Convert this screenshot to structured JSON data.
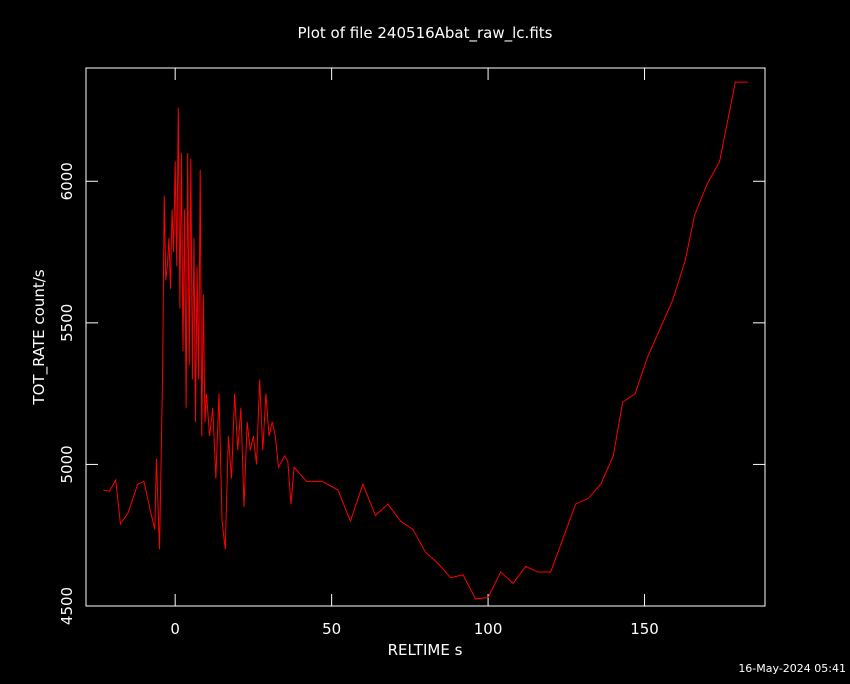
{
  "chart_data": {
    "type": "line",
    "title": "Plot of file 240516Abat_raw_lc.fits",
    "x_label": "RELTIME  s",
    "y_label": "TOT_RATE  count/s",
    "timestamp": "16-May-2024 05:41",
    "xlim": [
      -28.5,
      188.5
    ],
    "ylim": [
      4500,
      6400
    ],
    "xticks": [
      0,
      50,
      100,
      150
    ],
    "yticks": [
      4500,
      5000,
      5500,
      6000
    ],
    "series": [
      {
        "color": "#ff0000",
        "x": [
          -23,
          -21,
          -19,
          -17.5,
          -15,
          -12,
          -10,
          -8,
          -6.5,
          -6,
          -5,
          -4,
          -3.5,
          -3,
          -2.5,
          -2,
          -1.5,
          -1,
          -0.5,
          0,
          0.5,
          1,
          1.5,
          2,
          2.5,
          3,
          3.5,
          4,
          4.5,
          5,
          5.5,
          6,
          6.5,
          7,
          7.5,
          8,
          8.5,
          9,
          9.5,
          10,
          11,
          12,
          13,
          14,
          15,
          16,
          17,
          18,
          19,
          20,
          21,
          22,
          23,
          24,
          25,
          26,
          27,
          28,
          29,
          30,
          31,
          32,
          33,
          35,
          36,
          37,
          38,
          42,
          47,
          52,
          56,
          60,
          64,
          68,
          72,
          76,
          80,
          84,
          88,
          92,
          96,
          100,
          104,
          108,
          112,
          116,
          120,
          124,
          128,
          132,
          136,
          140,
          143,
          147,
          151,
          155,
          159,
          163,
          166,
          170,
          174,
          179,
          183
        ],
        "values": [
          4910,
          4905,
          4945,
          4790,
          4830,
          4930,
          4940,
          4840,
          4770,
          5020,
          4700,
          5330,
          5950,
          5650,
          5700,
          5800,
          5620,
          5900,
          5750,
          6070,
          5700,
          6260,
          5550,
          6100,
          5400,
          5900,
          5200,
          6100,
          5350,
          6080,
          5300,
          5800,
          5150,
          5700,
          5300,
          6040,
          5100,
          5600,
          5150,
          5250,
          5100,
          5200,
          4950,
          5250,
          4800,
          4700,
          5100,
          4950,
          5250,
          5050,
          5200,
          4850,
          5150,
          5050,
          5100,
          5000,
          5300,
          5050,
          5250,
          5100,
          5150,
          5100,
          4990,
          5030,
          5010,
          4860,
          4990,
          4940,
          4940,
          4910,
          4800,
          4930,
          4820,
          4860,
          4800,
          4770,
          4690,
          4650,
          4600,
          4610,
          4525,
          4530,
          4620,
          4580,
          4640,
          4620,
          4620,
          4740,
          4860,
          4880,
          4930,
          5030,
          5220,
          5250,
          5380,
          5480,
          5580,
          5720,
          5880,
          5990,
          6070,
          6350,
          6350
        ]
      }
    ]
  }
}
